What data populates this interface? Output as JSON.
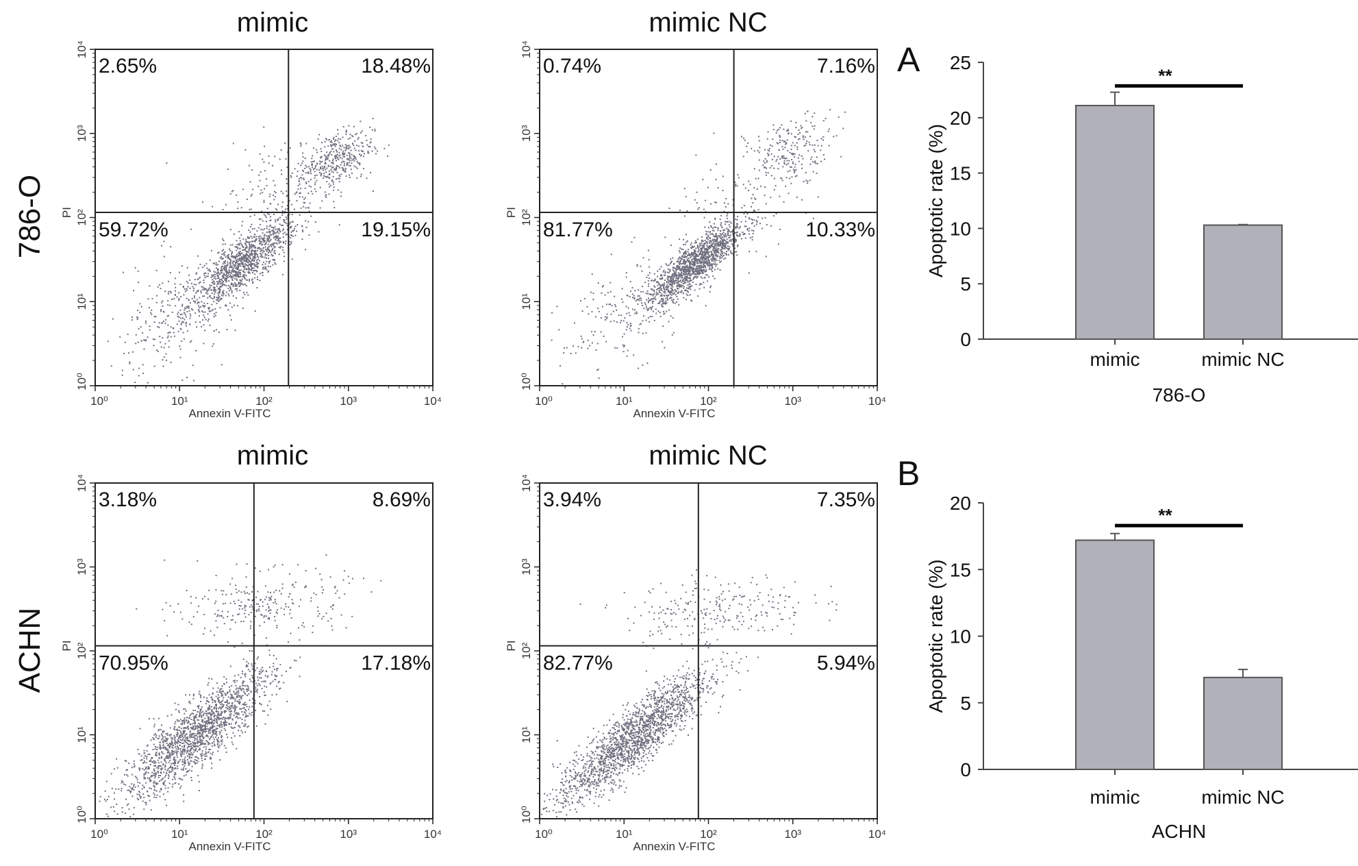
{
  "row_labels": [
    "786-O",
    "ACHN"
  ],
  "panel_labels": [
    "A",
    "B"
  ],
  "chart_data": [
    {
      "type": "scatter",
      "title": "mimic",
      "row": "786-O",
      "xlabel": "Annexin V-FITC",
      "ylabel": "PI",
      "x_scale": "log",
      "y_scale": "log",
      "xlim": [
        1,
        10000
      ],
      "ylim": [
        1,
        10000
      ],
      "x_ticks": [
        "10⁰",
        "10¹",
        "10²",
        "10³",
        "10⁴"
      ],
      "y_ticks": [
        "10⁰",
        "10¹",
        "10²",
        "10³",
        "10⁴"
      ],
      "gate": {
        "x": 195,
        "y": 115
      },
      "quadrants": {
        "upper_left": "2.65%",
        "upper_right": "18.48%",
        "lower_left": "59.72%",
        "lower_right": "19.15%"
      },
      "dot_color": "#6e6e7e"
    },
    {
      "type": "scatter",
      "title": "mimic NC",
      "row": "786-O",
      "xlabel": "Annexin V-FITC",
      "ylabel": "PI",
      "x_scale": "log",
      "y_scale": "log",
      "xlim": [
        1,
        10000
      ],
      "ylim": [
        1,
        10000
      ],
      "x_ticks": [
        "10⁰",
        "10¹",
        "10²",
        "10³",
        "10⁴"
      ],
      "y_ticks": [
        "10⁰",
        "10¹",
        "10²",
        "10³",
        "10⁴"
      ],
      "gate": {
        "x": 200,
        "y": 115
      },
      "quadrants": {
        "upper_left": "0.74%",
        "upper_right": "7.16%",
        "lower_left": "81.77%",
        "lower_right": "10.33%"
      },
      "dot_color": "#6e6e7e"
    },
    {
      "type": "scatter",
      "title": "mimic",
      "row": "ACHN",
      "xlabel": "Annexin V-FITC",
      "ylabel": "PI",
      "x_scale": "log",
      "y_scale": "log",
      "xlim": [
        1,
        10000
      ],
      "ylim": [
        1,
        10000
      ],
      "x_ticks": [
        "10⁰",
        "10¹",
        "10²",
        "10³",
        "10⁴"
      ],
      "y_ticks": [
        "10⁰",
        "10¹",
        "10²",
        "10³",
        "10⁴"
      ],
      "gate": {
        "x": 76,
        "y": 115
      },
      "quadrants": {
        "upper_left": "3.18%",
        "upper_right": "8.69%",
        "lower_left": "70.95%",
        "lower_right": "17.18%"
      },
      "dot_color": "#6e6e7e"
    },
    {
      "type": "scatter",
      "title": "mimic NC",
      "row": "ACHN",
      "xlabel": "Annexin V-FITC",
      "ylabel": "PI",
      "x_scale": "log",
      "y_scale": "log",
      "xlim": [
        1,
        10000
      ],
      "ylim": [
        1,
        10000
      ],
      "x_ticks": [
        "10⁰",
        "10¹",
        "10²",
        "10³",
        "10⁴"
      ],
      "y_ticks": [
        "10⁰",
        "10¹",
        "10²",
        "10³",
        "10⁴"
      ],
      "gate": {
        "x": 76,
        "y": 115
      },
      "quadrants": {
        "upper_left": "3.94%",
        "upper_right": "7.35%",
        "lower_left": "82.77%",
        "lower_right": "5.94%"
      },
      "dot_color": "#6e6e7e"
    },
    {
      "type": "bar",
      "panel": "A",
      "categories": [
        "mimic",
        "mimic NC"
      ],
      "values": [
        21.1,
        10.3
      ],
      "errors": [
        1.2,
        0.05
      ],
      "xlabel": "786-O",
      "ylabel": "Apoptotic rate (%)",
      "ylim": [
        0,
        25
      ],
      "y_ticks": [
        0,
        5,
        10,
        15,
        20,
        25
      ],
      "significance": "**",
      "bar_color": "#b1b1b9"
    },
    {
      "type": "bar",
      "panel": "B",
      "categories": [
        "mimic",
        "mimic NC"
      ],
      "values": [
        17.2,
        6.9
      ],
      "errors": [
        0.5,
        0.6
      ],
      "xlabel": "ACHN",
      "ylabel": "Apoptotic rate (%)",
      "ylim": [
        0,
        20
      ],
      "y_ticks": [
        0,
        5,
        10,
        15,
        20
      ],
      "significance": "**",
      "bar_color": "#b1b1b9"
    }
  ]
}
